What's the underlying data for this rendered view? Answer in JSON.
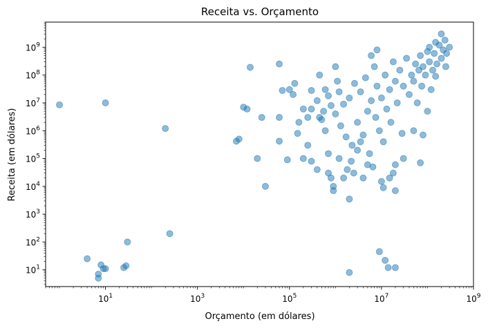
{
  "chart_data": {
    "type": "scatter",
    "title": "Receita vs. Orçamento",
    "xlabel": "Orçamento (em dólares)",
    "ylabel": "Receita (em dólares)",
    "xscale": "log",
    "yscale": "log",
    "xlim": [
      0.5,
      1000000000
    ],
    "ylim": [
      2.5,
      8000000000
    ],
    "grid": false,
    "legend": "none",
    "marker_color": "#1f77b4",
    "marker_alpha": 0.5,
    "x_ticks": [
      {
        "value": 10,
        "base": "10",
        "exp": "1"
      },
      {
        "value": 1000,
        "base": "10",
        "exp": "3"
      },
      {
        "value": 100000,
        "base": "10",
        "exp": "5"
      },
      {
        "value": 10000000,
        "base": "10",
        "exp": "7"
      },
      {
        "value": 1000000000,
        "base": "10",
        "exp": "9"
      }
    ],
    "y_ticks": [
      {
        "value": 10,
        "base": "10",
        "exp": "1"
      },
      {
        "value": 100,
        "base": "10",
        "exp": "2"
      },
      {
        "value": 1000,
        "base": "10",
        "exp": "3"
      },
      {
        "value": 10000,
        "base": "10",
        "exp": "4"
      },
      {
        "value": 100000,
        "base": "10",
        "exp": "5"
      },
      {
        "value": 1000000,
        "base": "10",
        "exp": "6"
      },
      {
        "value": 10000000,
        "base": "10",
        "exp": "7"
      },
      {
        "value": 100000000,
        "base": "10",
        "exp": "8"
      },
      {
        "value": 1000000000,
        "base": "10",
        "exp": "9"
      }
    ],
    "points": [
      [
        1,
        8500000
      ],
      [
        10,
        10000000
      ],
      [
        200,
        1200000
      ],
      [
        8,
        15
      ],
      [
        7,
        7
      ],
      [
        7,
        5
      ],
      [
        4,
        25
      ],
      [
        10,
        11
      ],
      [
        9,
        11
      ],
      [
        25,
        12
      ],
      [
        28,
        14
      ],
      [
        30,
        100
      ],
      [
        250,
        200
      ],
      [
        14000,
        190000000
      ],
      [
        60000,
        250000000
      ],
      [
        10000,
        7000000
      ],
      [
        12000,
        6000000
      ],
      [
        8000,
        500000
      ],
      [
        7000,
        420000
      ],
      [
        20000,
        100000
      ],
      [
        30000,
        10000
      ],
      [
        25000,
        3000000
      ],
      [
        60000,
        3000000
      ],
      [
        60000,
        420000
      ],
      [
        90000,
        90000
      ],
      [
        70000,
        28000000
      ],
      [
        100000,
        30000000
      ],
      [
        120000,
        20000000
      ],
      [
        130000,
        50000000
      ],
      [
        150000,
        800000
      ],
      [
        160000,
        2000000
      ],
      [
        200000,
        6000000
      ],
      [
        250000,
        3000000
      ],
      [
        250000,
        300000
      ],
      [
        200000,
        100000
      ],
      [
        300000,
        80000
      ],
      [
        400000,
        40000
      ],
      [
        300000,
        28000000
      ],
      [
        450000,
        100000000
      ],
      [
        500000,
        2500000
      ],
      [
        600000,
        1000000
      ],
      [
        700000,
        150000
      ],
      [
        800000,
        20000
      ],
      [
        900000,
        10000
      ],
      [
        900000,
        7000
      ],
      [
        700000,
        30000
      ],
      [
        1000000,
        200000000
      ],
      [
        1100000,
        60000000
      ],
      [
        1200000,
        100000
      ],
      [
        1500000,
        20000
      ],
      [
        1800000,
        40000
      ],
      [
        2000000,
        3500
      ],
      [
        2200000,
        80000
      ],
      [
        2500000,
        30000
      ],
      [
        3000000,
        200000
      ],
      [
        3500000,
        400000
      ],
      [
        4000000,
        20000
      ],
      [
        5000000,
        60000
      ],
      [
        6000000,
        500000000
      ],
      [
        6500000,
        50000
      ],
      [
        8000000,
        800000000
      ],
      [
        9000000,
        45
      ],
      [
        10000000,
        15000
      ],
      [
        11000000,
        9000
      ],
      [
        12000000,
        22
      ],
      [
        14000000,
        12
      ],
      [
        15000000,
        20000
      ],
      [
        18000000,
        30000
      ],
      [
        20000000,
        12
      ],
      [
        20000000,
        7000
      ],
      [
        20000000,
        60000
      ],
      [
        2000000,
        8
      ],
      [
        70000000,
        70000
      ],
      [
        80000000,
        700000
      ],
      [
        200000000,
        3000000000
      ],
      [
        300000000,
        1000000000
      ],
      [
        150000000,
        90000000
      ],
      [
        100000000,
        5000000
      ],
      [
        50000000,
        1000000
      ],
      [
        30000000,
        100000
      ],
      [
        300000,
        6000000
      ],
      [
        400000,
        12000000
      ],
      [
        450000,
        3000000
      ],
      [
        550000,
        5000000
      ],
      [
        600000,
        30000000
      ],
      [
        700000,
        18000000
      ],
      [
        800000,
        8000000
      ],
      [
        1000000,
        4000000
      ],
      [
        1200000,
        25000000
      ],
      [
        1300000,
        1500000
      ],
      [
        1500000,
        9000000
      ],
      [
        1700000,
        600000
      ],
      [
        2000000,
        15000000
      ],
      [
        2300000,
        300000
      ],
      [
        2600000,
        50000000
      ],
      [
        3000000,
        2000000
      ],
      [
        3500000,
        25000000
      ],
      [
        4000000,
        700000
      ],
      [
        4500000,
        80000000
      ],
      [
        5000000,
        5000000
      ],
      [
        5500000,
        150000
      ],
      [
        6000000,
        12000000
      ],
      [
        7000000,
        200000000
      ],
      [
        7500000,
        3000000
      ],
      [
        8000000,
        40000000
      ],
      [
        9000000,
        1000000
      ],
      [
        10000000,
        15000000
      ],
      [
        11000000,
        400000
      ],
      [
        12000000,
        100000000
      ],
      [
        13000000,
        6000000
      ],
      [
        15000000,
        30000000
      ],
      [
        16000000,
        2000000
      ],
      [
        18000000,
        300000000
      ],
      [
        20000000,
        60000000
      ],
      [
        22000000,
        10000000
      ],
      [
        25000000,
        150000000
      ],
      [
        28000000,
        800000
      ],
      [
        30000000,
        40000000
      ],
      [
        35000000,
        400000000
      ],
      [
        40000000,
        20000000
      ],
      [
        45000000,
        100000000
      ],
      [
        50000000,
        60000000
      ],
      [
        55000000,
        250000000
      ],
      [
        60000000,
        10000000
      ],
      [
        65000000,
        150000000
      ],
      [
        70000000,
        500000000
      ],
      [
        75000000,
        40000000
      ],
      [
        80000000,
        200000000
      ],
      [
        90000000,
        100000000
      ],
      [
        100000000,
        700000000
      ],
      [
        110000000,
        300000000
      ],
      [
        120000000,
        30000000
      ],
      [
        130000000,
        150000000
      ],
      [
        140000000,
        600000000
      ],
      [
        160000000,
        250000000
      ],
      [
        180000000,
        1200000000
      ],
      [
        200000000,
        400000000
      ],
      [
        220000000,
        800000000
      ],
      [
        250000000,
        200000000
      ],
      [
        150000000,
        1500000000
      ],
      [
        110000000,
        1000000000
      ],
      [
        260000000,
        600000000
      ],
      [
        240000000,
        1800000000
      ]
    ]
  }
}
